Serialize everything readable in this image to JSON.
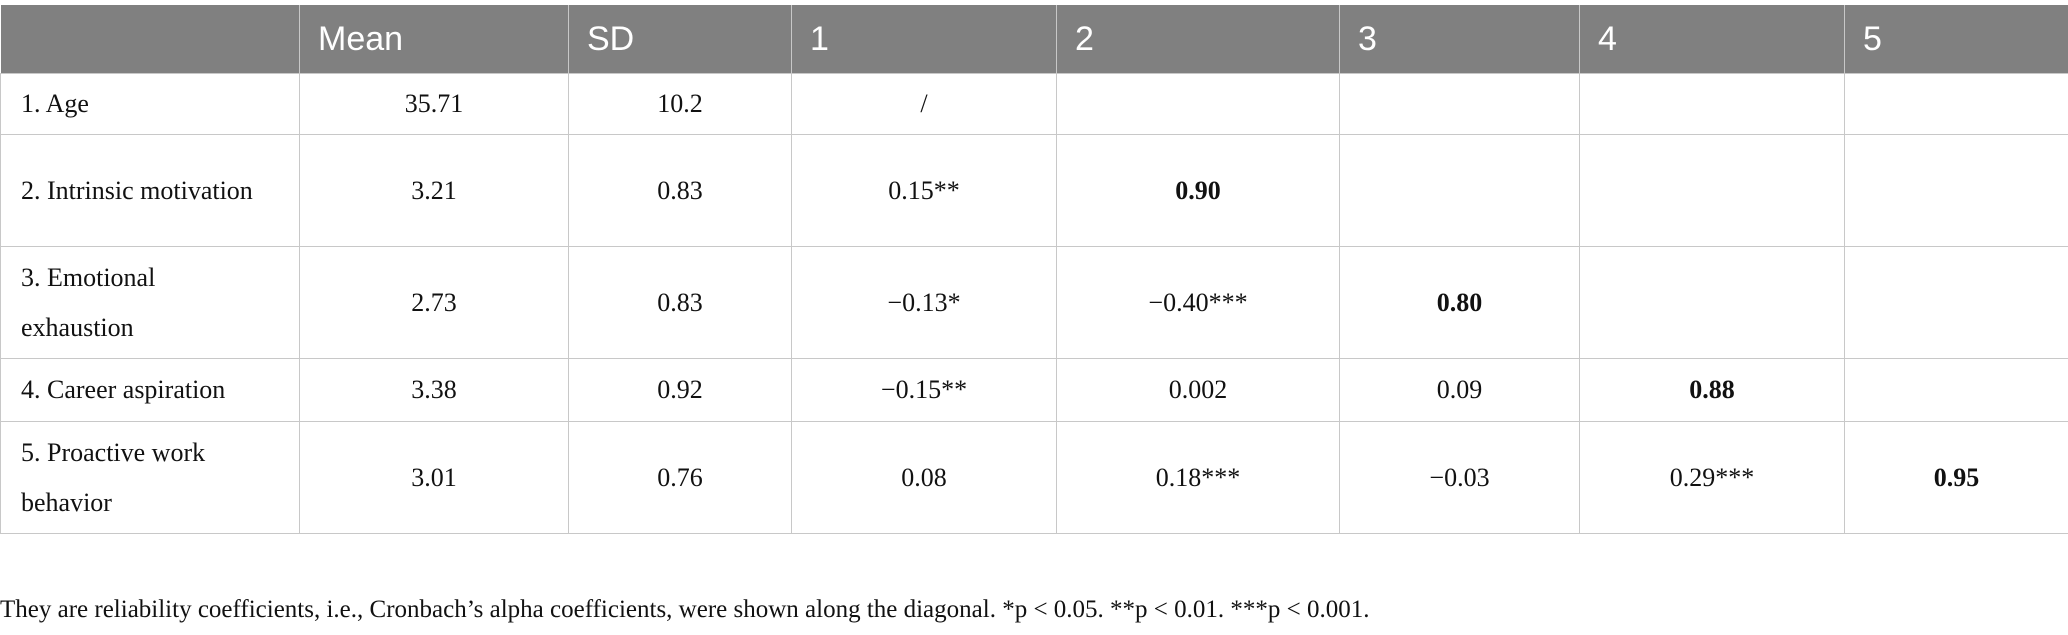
{
  "table": {
    "header": [
      "Mean",
      "SD",
      "1",
      "2",
      "3",
      "4",
      "5"
    ],
    "rows": [
      {
        "label": "1. Age",
        "cells": [
          "35.71",
          "10.2",
          "/"
        ]
      },
      {
        "label": "2. Intrinsic motivation",
        "cells": [
          "3.21",
          "0.83",
          "0.15**",
          "0.90"
        ]
      },
      {
        "label": "3. Emotional exhaustion",
        "cells": [
          "2.73",
          "0.83",
          "−0.13*",
          "−0.40***",
          "0.80"
        ]
      },
      {
        "label": "4. Career aspiration",
        "cells": [
          "3.38",
          "0.92",
          "−0.15**",
          "0.002",
          "0.09",
          "0.88"
        ]
      },
      {
        "label": "5. Proactive work behavior",
        "cells": [
          "3.01",
          "0.76",
          "0.08",
          "0.18***",
          "−0.03",
          "0.29***",
          "0.95"
        ]
      }
    ]
  },
  "footnote": "They are reliability coefficients, i.e., Cronbach’s alpha coefficients, were shown along the diagonal. *p < 0.05. **p < 0.01. ***p < 0.001."
}
